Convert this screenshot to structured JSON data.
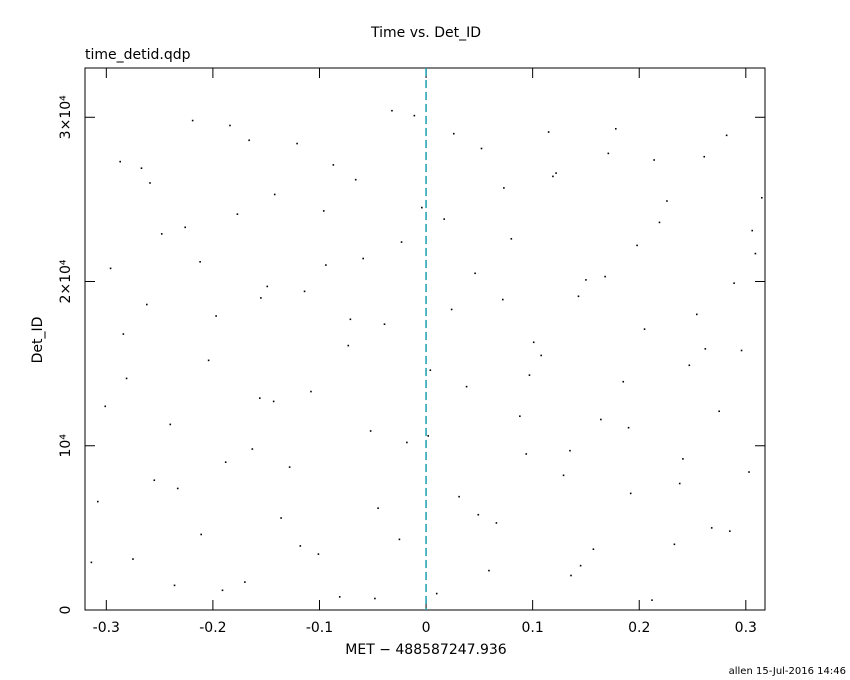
{
  "chart_data": {
    "type": "scatter",
    "title": "Time vs. Det_ID",
    "subtitle": "time_detid.qdp",
    "x_label": "MET − 488587247.936",
    "y_label": "Det_ID",
    "footer": "allen 15-Jul-2016 14:46",
    "color": "#000000",
    "vline": {
      "x": 0,
      "color": "#1a9fb0"
    },
    "xlim": [
      -0.32,
      0.318
    ],
    "ylim": [
      0,
      33000
    ],
    "xticks": [
      -0.3,
      -0.2,
      -0.1,
      0,
      0.1,
      0.2,
      0.3
    ],
    "yticks": [
      0,
      {
        "value": 10000,
        "label": "10⁴"
      },
      {
        "value": 20000,
        "label": "2×10⁴"
      },
      {
        "value": 30000,
        "label": "3×10⁴"
      }
    ],
    "x": [
      -0.301,
      -0.287,
      -0.275,
      -0.262,
      -0.248,
      -0.233,
      -0.219,
      -0.204,
      -0.191,
      -0.177,
      -0.163,
      -0.149,
      -0.136,
      -0.121,
      -0.108,
      -0.094,
      -0.081,
      -0.066,
      -0.052,
      -0.039,
      -0.025,
      -0.011,
      0.004,
      0.017,
      0.031,
      0.046,
      0.059,
      0.073,
      0.088,
      0.101,
      0.115,
      0.129,
      0.143,
      0.157,
      0.171,
      0.185,
      0.198,
      0.212,
      0.226,
      0.241,
      0.254,
      0.268,
      0.282,
      0.296,
      0.309,
      -0.314,
      -0.296,
      -0.281,
      -0.267,
      -0.255,
      -0.24,
      -0.226,
      -0.211,
      -0.197,
      -0.184,
      -0.17,
      -0.156,
      -0.142,
      -0.128,
      -0.114,
      -0.101,
      -0.087,
      -0.073,
      -0.059,
      -0.045,
      -0.032,
      -0.018,
      -0.004,
      0.01,
      0.024,
      0.038,
      0.052,
      0.066,
      0.08,
      0.094,
      0.108,
      0.122,
      0.136,
      0.15,
      0.164,
      0.178,
      0.192,
      0.205,
      0.219,
      0.233,
      0.247,
      0.261,
      0.275,
      0.289,
      0.303,
      0.315,
      -0.308,
      -0.284,
      -0.259,
      -0.236,
      -0.212,
      -0.188,
      -0.166,
      -0.143,
      -0.118,
      -0.096,
      -0.071,
      -0.048,
      -0.023,
      0.002,
      0.026,
      0.049,
      0.072,
      0.097,
      0.119,
      0.145,
      0.168,
      0.19,
      0.214,
      0.238,
      0.262,
      0.285,
      0.306,
      -0.155,
      0.135
    ],
    "values": [
      12400,
      27300,
      3100,
      18600,
      22900,
      7400,
      29800,
      15200,
      1200,
      24100,
      9800,
      19700,
      5600,
      28400,
      13300,
      21000,
      800,
      26200,
      10900,
      17400,
      4300,
      30100,
      14600,
      23800,
      6900,
      20500,
      2400,
      25700,
      11800,
      16300,
      29100,
      8200,
      19100,
      3700,
      27800,
      13900,
      22200,
      600,
      24900,
      9200,
      18000,
      5000,
      28900,
      15800,
      21700,
      2900,
      20800,
      14100,
      26900,
      7900,
      11300,
      23300,
      4600,
      17900,
      29500,
      1700,
      12900,
      25300,
      8700,
      19400,
      3400,
      27100,
      16100,
      21400,
      6200,
      30400,
      10200,
      24500,
      1000,
      18300,
      13600,
      28100,
      5300,
      22600,
      9500,
      15500,
      26600,
      2100,
      20100,
      11600,
      29300,
      7100,
      17100,
      23600,
      4000,
      14900,
      27600,
      12100,
      19900,
      8400,
      25100,
      6600,
      16800,
      26000,
      1500,
      21200,
      9000,
      28600,
      12700,
      3900,
      24300,
      17700,
      700,
      22400,
      10600,
      29000,
      5800,
      18900,
      14300,
      26400,
      2700,
      20300,
      11100,
      27400,
      7700,
      15900,
      4800,
      23100,
      19000,
      9700
    ]
  }
}
